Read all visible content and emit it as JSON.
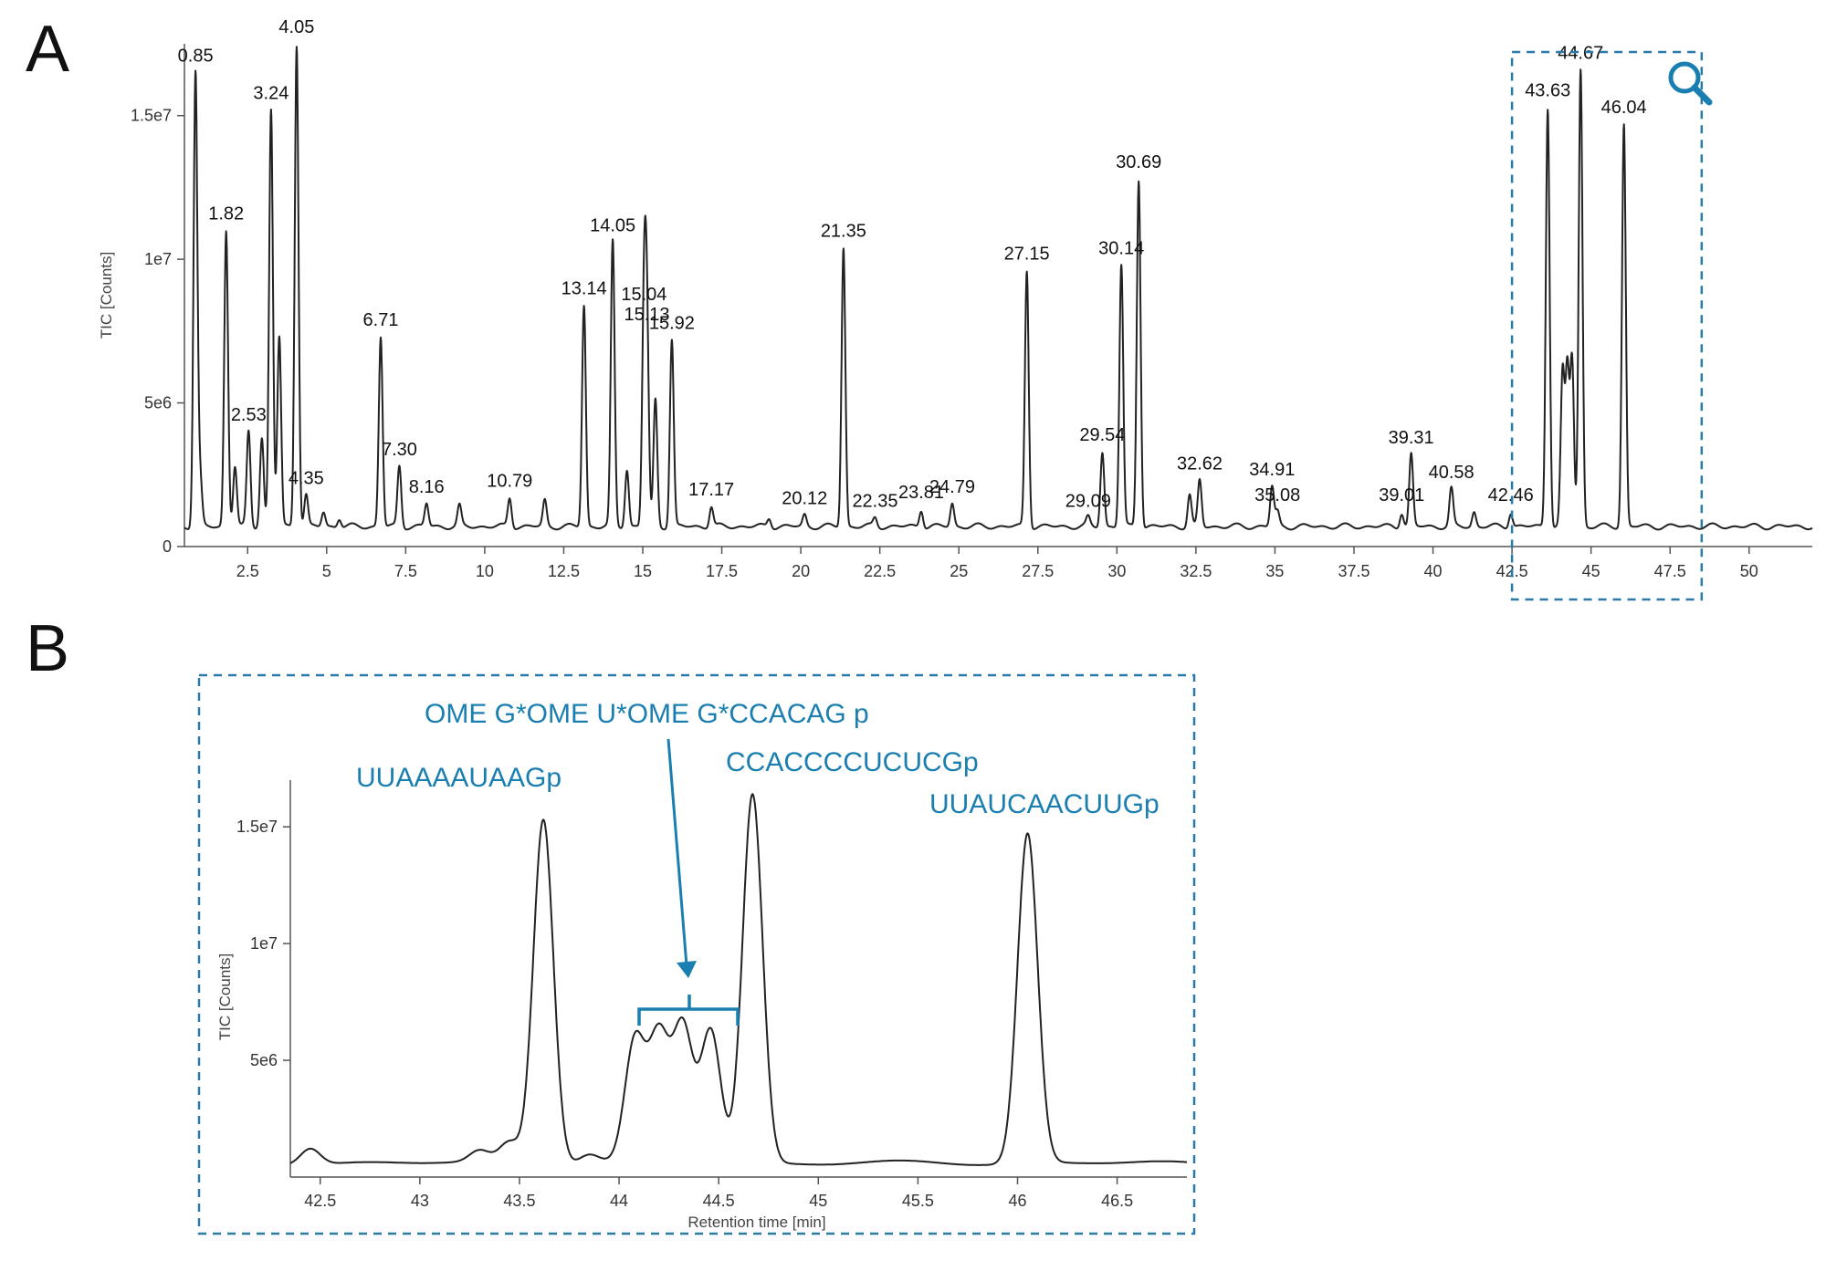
{
  "panels": {
    "a_label": "A",
    "b_label": "B"
  },
  "colors": {
    "trace": "#222222",
    "highlight": "#1a7fb0",
    "box": "#2a7aa8"
  },
  "zoom_icon": "magnifier-icon",
  "chart_data": [
    {
      "panel": "A",
      "type": "line",
      "title": "",
      "xlabel": "",
      "ylabel": "TIC [Counts]",
      "xlim": [
        0.5,
        52
      ],
      "ylim": [
        0,
        17500000
      ],
      "x_ticks": [
        2.5,
        5,
        7.5,
        10,
        12.5,
        15,
        17.5,
        20,
        22.5,
        25,
        27.5,
        30,
        32.5,
        35,
        37.5,
        40,
        42.5,
        45,
        47.5,
        50
      ],
      "x_tick_labels": [
        "2.5",
        "5",
        "7.5",
        "10",
        "12.5",
        "15",
        "17.5",
        "20",
        "22.5",
        "25",
        "27.5",
        "30",
        "32.5",
        "35",
        "37.5",
        "40",
        "42.5",
        "45",
        "47.5",
        "50"
      ],
      "y_ticks": [
        0,
        5000000,
        10000000,
        15000000
      ],
      "y_tick_labels": [
        "0",
        "5e6",
        "1e7",
        "1.5e7"
      ],
      "baseline": 700000,
      "peaks": [
        {
          "x": 0.85,
          "y": 16500000,
          "label": "0.85"
        },
        {
          "x": 1.0,
          "y": 2300000,
          "label": ""
        },
        {
          "x": 1.82,
          "y": 11000000,
          "label": "1.82"
        },
        {
          "x": 2.1,
          "y": 2800000,
          "label": ""
        },
        {
          "x": 2.53,
          "y": 4000000,
          "label": "2.53"
        },
        {
          "x": 2.95,
          "y": 3800000,
          "label": ""
        },
        {
          "x": 3.24,
          "y": 15200000,
          "label": "3.24"
        },
        {
          "x": 3.5,
          "y": 7300000,
          "label": ""
        },
        {
          "x": 4.05,
          "y": 17500000,
          "label": "4.05"
        },
        {
          "x": 4.35,
          "y": 1800000,
          "label": "4.35"
        },
        {
          "x": 4.9,
          "y": 1200000,
          "label": ""
        },
        {
          "x": 5.4,
          "y": 1000000,
          "label": ""
        },
        {
          "x": 6.71,
          "y": 7300000,
          "label": "6.71"
        },
        {
          "x": 7.3,
          "y": 2800000,
          "label": "7.30"
        },
        {
          "x": 8.16,
          "y": 1500000,
          "label": "8.16"
        },
        {
          "x": 9.2,
          "y": 1400000,
          "label": ""
        },
        {
          "x": 10.79,
          "y": 1700000,
          "label": "10.79"
        },
        {
          "x": 11.9,
          "y": 1600000,
          "label": ""
        },
        {
          "x": 13.14,
          "y": 8400000,
          "label": "13.14"
        },
        {
          "x": 14.05,
          "y": 10600000,
          "label": "14.05"
        },
        {
          "x": 14.5,
          "y": 2700000,
          "label": ""
        },
        {
          "x": 15.04,
          "y": 8200000,
          "label": "15.04"
        },
        {
          "x": 15.13,
          "y": 7500000,
          "label": "15.13"
        },
        {
          "x": 15.4,
          "y": 5100000,
          "label": ""
        },
        {
          "x": 15.92,
          "y": 7200000,
          "label": "15.92"
        },
        {
          "x": 17.17,
          "y": 1400000,
          "label": "17.17"
        },
        {
          "x": 19.0,
          "y": 1000000,
          "label": ""
        },
        {
          "x": 20.12,
          "y": 1100000,
          "label": "20.12"
        },
        {
          "x": 21.35,
          "y": 10400000,
          "label": "21.35"
        },
        {
          "x": 22.35,
          "y": 1000000,
          "label": "22.35"
        },
        {
          "x": 23.81,
          "y": 1300000,
          "label": "23.81"
        },
        {
          "x": 24.79,
          "y": 1500000,
          "label": "24.79"
        },
        {
          "x": 27.15,
          "y": 9600000,
          "label": "27.15"
        },
        {
          "x": 29.09,
          "y": 1000000,
          "label": "29.09"
        },
        {
          "x": 29.54,
          "y": 3300000,
          "label": "29.54"
        },
        {
          "x": 30.14,
          "y": 9800000,
          "label": "30.14"
        },
        {
          "x": 30.69,
          "y": 12800000,
          "label": "30.69"
        },
        {
          "x": 32.3,
          "y": 1800000,
          "label": ""
        },
        {
          "x": 32.62,
          "y": 2300000,
          "label": "32.62"
        },
        {
          "x": 34.91,
          "y": 2100000,
          "label": "34.91"
        },
        {
          "x": 35.08,
          "y": 1200000,
          "label": "35.08"
        },
        {
          "x": 39.01,
          "y": 1200000,
          "label": "39.01"
        },
        {
          "x": 39.31,
          "y": 3200000,
          "label": "39.31"
        },
        {
          "x": 40.58,
          "y": 2000000,
          "label": "40.58"
        },
        {
          "x": 41.3,
          "y": 1200000,
          "label": ""
        },
        {
          "x": 42.46,
          "y": 1200000,
          "label": "42.46"
        },
        {
          "x": 43.63,
          "y": 15300000,
          "label": "43.63"
        },
        {
          "x": 44.1,
          "y": 6000000,
          "label": ""
        },
        {
          "x": 44.25,
          "y": 6100000,
          "label": ""
        },
        {
          "x": 44.4,
          "y": 6500000,
          "label": ""
        },
        {
          "x": 44.67,
          "y": 16600000,
          "label": "44.67"
        },
        {
          "x": 46.04,
          "y": 14700000,
          "label": "46.04"
        }
      ],
      "zoom_region": [
        42.5,
        48.5
      ]
    },
    {
      "panel": "B",
      "type": "line",
      "title": "",
      "xlabel": "Retention time [min]",
      "ylabel": "TIC [Counts]",
      "xlim": [
        42.35,
        46.85
      ],
      "ylim": [
        0,
        17000000
      ],
      "x_ticks": [
        42.5,
        43,
        43.5,
        44,
        44.5,
        45,
        45.5,
        46,
        46.5
      ],
      "x_tick_labels": [
        "42.5",
        "43",
        "43.5",
        "44",
        "44.5",
        "45",
        "45.5",
        "46",
        "46.5"
      ],
      "y_ticks": [
        5000000,
        10000000,
        15000000
      ],
      "y_tick_labels": [
        "5e6",
        "1e7",
        "1.5e7"
      ],
      "baseline": 600000,
      "peaks": [
        {
          "x": 42.45,
          "y": 1300000
        },
        {
          "x": 43.3,
          "y": 1100000
        },
        {
          "x": 43.45,
          "y": 1500000
        },
        {
          "x": 43.62,
          "y": 15400000
        },
        {
          "x": 43.85,
          "y": 1000000
        },
        {
          "x": 44.08,
          "y": 5800000
        },
        {
          "x": 44.2,
          "y": 5900000
        },
        {
          "x": 44.32,
          "y": 6400000
        },
        {
          "x": 44.46,
          "y": 6300000
        },
        {
          "x": 44.67,
          "y": 16400000
        },
        {
          "x": 46.05,
          "y": 14600000
        },
        {
          "x": 46.1,
          "y": 800000
        }
      ],
      "annotations": [
        {
          "text": "UUAAAAUAAGp"
        },
        {
          "text": "OME G*OME U*OME G*CCACAG p"
        },
        {
          "text": "CCACCCCUCUCGp"
        },
        {
          "text": "UUAUCAACUUGp"
        }
      ]
    }
  ]
}
